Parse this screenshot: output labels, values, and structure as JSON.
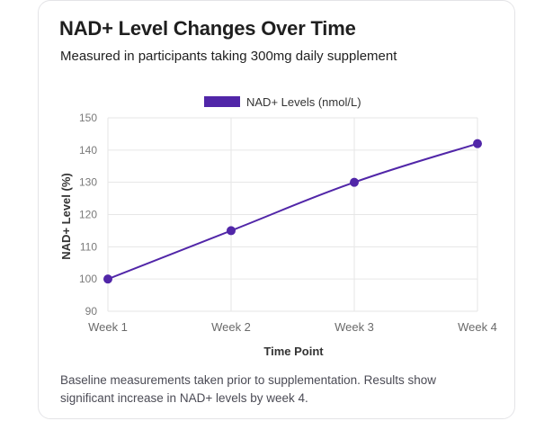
{
  "card": {
    "title": "NAD+ Level Changes Over Time",
    "subtitle": "Measured in participants taking 300mg daily supplement",
    "footnote": "Baseline measurements taken prior to supplementation. Results show significant increase in NAD+ levels by week 4."
  },
  "chart_data": {
    "type": "line",
    "categories": [
      "Week 1",
      "Week 2",
      "Week 3",
      "Week 4"
    ],
    "series": [
      {
        "name": "NAD+ Levels (nmol/L)",
        "values": [
          100,
          115,
          130,
          142
        ],
        "color": "#5126a8"
      }
    ],
    "xlabel": "Time Point",
    "ylabel": "NAD+ Level (%)",
    "ylim": [
      90,
      150
    ],
    "yticks": [
      90,
      100,
      110,
      120,
      130,
      140,
      150
    ],
    "grid": true,
    "legend": "top-center"
  }
}
